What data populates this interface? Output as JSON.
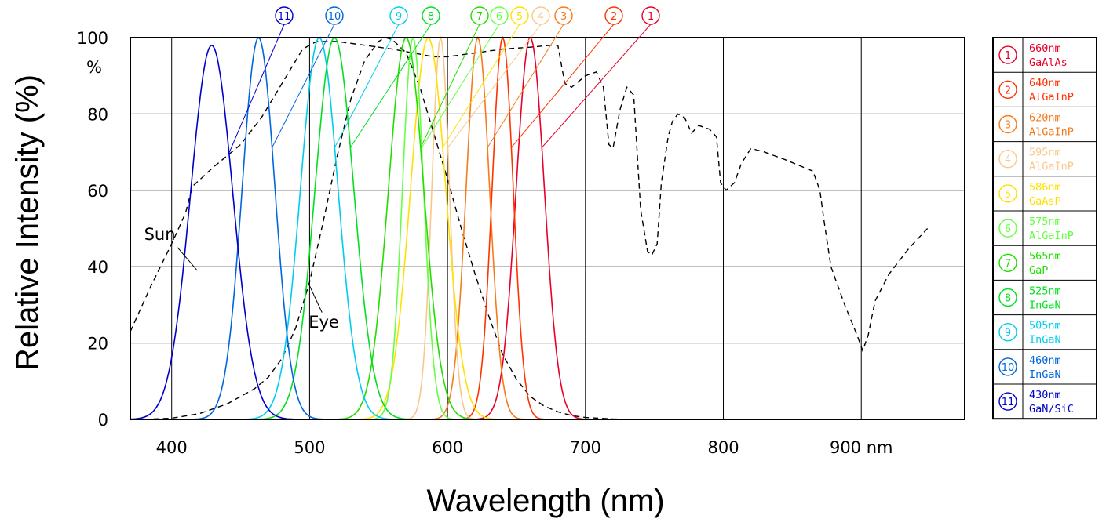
{
  "chart_data": {
    "type": "line",
    "title": "",
    "xlabel": "Wavelength (nm)",
    "ylabel": "Relative Intensity (%)",
    "x_unit_label": "nm",
    "y_unit_label": "%",
    "xlim": [
      370,
      975
    ],
    "ylim": [
      0,
      100
    ],
    "x_ticks": [
      400,
      500,
      600,
      700,
      800,
      900
    ],
    "x_tick_labels": [
      "400",
      "500",
      "600",
      "700",
      "800",
      "900 nm"
    ],
    "y_ticks": [
      0,
      20,
      40,
      60,
      80,
      100
    ],
    "y_tick_labels": [
      "0",
      "20",
      "40",
      "60",
      "80",
      "100"
    ],
    "grid": true,
    "legend_placement": "right",
    "series": [
      {
        "id": "1",
        "marker": "1",
        "wavelength": "660nm",
        "material": "GaAlAs",
        "color": "#e8002a",
        "peak_x": 660,
        "peak_y": 100,
        "fwhm": 24
      },
      {
        "id": "2",
        "marker": "2",
        "wavelength": "640nm",
        "material": "AlGaInP",
        "color": "#ff3300",
        "peak_x": 640,
        "peak_y": 100,
        "fwhm": 18
      },
      {
        "id": "3",
        "marker": "3",
        "wavelength": "620nm",
        "material": "AlGaInP",
        "color": "#f57a1a",
        "peak_x": 622,
        "peak_y": 100,
        "fwhm": 20
      },
      {
        "id": "4",
        "marker": "4",
        "wavelength": "595nm",
        "material": "AlGaInP",
        "color": "#f8c88a",
        "peak_x": 595,
        "peak_y": 100,
        "fwhm": 15
      },
      {
        "id": "5",
        "marker": "5",
        "wavelength": "586nm",
        "material": "GaAsP",
        "color": "#ffe000",
        "peak_x": 586,
        "peak_y": 100,
        "fwhm": 30
      },
      {
        "id": "6",
        "marker": "6",
        "wavelength": "575nm",
        "material": "AlGaInP",
        "color": "#66ff44",
        "peak_x": 575,
        "peak_y": 100,
        "fwhm": 18
      },
      {
        "id": "7",
        "marker": "7",
        "wavelength": "565nm",
        "material": "GaP",
        "color": "#22dd00",
        "peak_x": 570,
        "peak_y": 100,
        "fwhm": 30
      },
      {
        "id": "8",
        "marker": "8",
        "wavelength": "525nm",
        "material": "InGaN",
        "color": "#00e020",
        "peak_x": 518,
        "peak_y": 100,
        "fwhm": 33
      },
      {
        "id": "9",
        "marker": "9",
        "wavelength": "505nm",
        "material": "InGaN",
        "color": "#00ccee",
        "peak_x": 507,
        "peak_y": 100,
        "fwhm": 32
      },
      {
        "id": "10",
        "marker": "10",
        "wavelength": "460nm",
        "material": "InGaN",
        "color": "#0066dd",
        "peak_x": 463,
        "peak_y": 100,
        "fwhm": 28
      },
      {
        "id": "11",
        "marker": "11",
        "wavelength": "430nm",
        "material": "GaN/SiC",
        "color": "#0000cc",
        "peak_x": 429,
        "peak_y": 98,
        "fwhm": 36
      }
    ],
    "reference_curves": [
      {
        "label": "Sun",
        "style": "dashed",
        "color": "#000000",
        "points": [
          [
            370,
            23
          ],
          [
            385,
            35
          ],
          [
            400,
            46
          ],
          [
            410,
            54
          ],
          [
            415,
            61
          ],
          [
            430,
            66
          ],
          [
            450,
            72
          ],
          [
            465,
            79
          ],
          [
            480,
            88
          ],
          [
            495,
            97
          ],
          [
            505,
            99
          ],
          [
            520,
            99
          ],
          [
            540,
            98
          ],
          [
            560,
            97
          ],
          [
            575,
            96
          ],
          [
            590,
            95
          ],
          [
            600,
            95
          ],
          [
            620,
            96
          ],
          [
            640,
            97
          ],
          [
            660,
            97.5
          ],
          [
            675,
            98
          ],
          [
            680,
            98
          ],
          [
            685,
            88
          ],
          [
            690,
            87
          ],
          [
            700,
            90
          ],
          [
            708,
            91
          ],
          [
            713,
            87
          ],
          [
            717,
            72
          ],
          [
            720,
            71
          ],
          [
            725,
            81
          ],
          [
            730,
            87
          ],
          [
            735,
            85
          ],
          [
            740,
            55
          ],
          [
            745,
            44
          ],
          [
            748,
            43
          ],
          [
            752,
            46
          ],
          [
            755,
            62
          ],
          [
            760,
            74
          ],
          [
            763,
            78
          ],
          [
            767,
            80
          ],
          [
            772,
            79
          ],
          [
            777,
            75
          ],
          [
            782,
            77
          ],
          [
            790,
            76
          ],
          [
            795,
            74
          ],
          [
            798,
            62
          ],
          [
            802,
            60
          ],
          [
            808,
            62
          ],
          [
            813,
            67
          ],
          [
            820,
            71
          ],
          [
            830,
            70
          ],
          [
            845,
            68
          ],
          [
            865,
            65
          ],
          [
            870,
            60
          ],
          [
            873,
            52
          ],
          [
            878,
            40
          ],
          [
            888,
            30
          ],
          [
            897,
            22
          ],
          [
            901,
            18
          ],
          [
            905,
            22
          ],
          [
            910,
            31
          ],
          [
            920,
            38
          ],
          [
            935,
            45
          ],
          [
            948,
            50
          ]
        ]
      },
      {
        "label": "Eye",
        "style": "dashed",
        "color": "#000000",
        "points": [
          [
            380,
            0
          ],
          [
            400,
            0.3
          ],
          [
            420,
            1.5
          ],
          [
            440,
            4
          ],
          [
            460,
            8
          ],
          [
            470,
            11
          ],
          [
            480,
            16
          ],
          [
            490,
            24
          ],
          [
            500,
            36
          ],
          [
            510,
            52
          ],
          [
            520,
            69
          ],
          [
            530,
            84
          ],
          [
            540,
            94
          ],
          [
            550,
            99
          ],
          [
            555,
            100
          ],
          [
            560,
            99.5
          ],
          [
            570,
            96
          ],
          [
            580,
            87
          ],
          [
            590,
            75
          ],
          [
            600,
            63
          ],
          [
            610,
            50
          ],
          [
            620,
            38
          ],
          [
            630,
            27
          ],
          [
            640,
            17
          ],
          [
            650,
            10.5
          ],
          [
            660,
            6
          ],
          [
            670,
            3.5
          ],
          [
            680,
            2
          ],
          [
            690,
            1
          ],
          [
            700,
            0.5
          ],
          [
            720,
            0.1
          ],
          [
            740,
            0
          ]
        ]
      }
    ],
    "annotations": [
      "Sun",
      "Eye"
    ]
  }
}
